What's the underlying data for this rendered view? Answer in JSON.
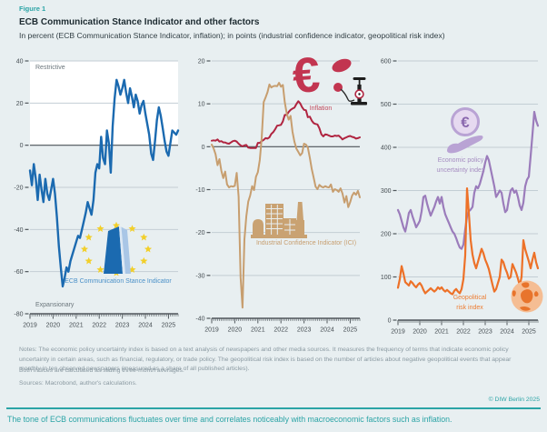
{
  "header": {
    "figure_label": "Figure 1",
    "title": "ECB Communication Stance Indicator and other factors",
    "subtitle": "In percent (ECB Communication Stance Indicator, inflation); in points (industrial confidence indicator, geopolitical risk index)"
  },
  "colors": {
    "background": "#e8eff1",
    "teal_accent": "#2ba4a6",
    "ecb_blue": "#1b6ab0",
    "inflation_red": "#b02440",
    "ici_tan": "#c79e6f",
    "epu_purple": "#9b7cbb",
    "gpr_orange": "#ed7128",
    "grid": "#c3ced4",
    "axis": "#50575c",
    "star_yellow": "#f2cf2a"
  },
  "icons": {
    "euro_symbol": "€"
  },
  "chart_data": [
    {
      "type": "line",
      "panel": "left",
      "unit": "percent",
      "ylim": [
        -80,
        40
      ],
      "yticks": [
        40,
        20,
        0,
        -20,
        -40,
        -60,
        -80
      ],
      "xticks": [
        "2019",
        "2020",
        "2021",
        "2022",
        "2023",
        "2024",
        "2025"
      ],
      "x_monthly_from": "2019-01",
      "x_monthly_to": "2025-06",
      "grid": true,
      "zone_labels": {
        "top": "Restrictive",
        "bottom": "Expansionary"
      },
      "bands": [
        {
          "from": 0,
          "to": 40,
          "color": "#ffffff"
        }
      ],
      "series": [
        {
          "name": "ECB Communication Stance Indicator",
          "color": "#1b6ab0",
          "width": 2.4,
          "values": [
            -12,
            -19,
            -9,
            -16,
            -26,
            -14,
            -21,
            -27,
            -16,
            -23,
            -26,
            -21,
            -16,
            -23,
            -34,
            -48,
            -58,
            -67,
            -63,
            -58,
            -60,
            -55,
            -52,
            -49,
            -46,
            -43,
            -44,
            -40,
            -36,
            -32,
            -27,
            -30,
            -33,
            -26,
            -13,
            -9,
            -11,
            4,
            -6,
            -9,
            7,
            1,
            -13,
            9,
            22,
            31,
            28,
            24,
            27,
            31,
            25,
            20,
            27,
            23,
            18,
            24,
            21,
            15,
            19,
            21,
            15,
            10,
            5,
            -4,
            -7,
            2,
            12,
            18,
            14,
            8,
            2,
            -3,
            -5,
            1,
            7,
            6,
            5,
            7
          ]
        }
      ]
    },
    {
      "type": "line",
      "panel": "middle",
      "unit": "percent / points",
      "ylim": [
        -40,
        20
      ],
      "yticks": [
        20,
        10,
        0,
        -10,
        -20,
        -30,
        -40
      ],
      "xticks": [
        "2019",
        "2020",
        "2021",
        "2022",
        "2023",
        "2024",
        "2025"
      ],
      "x_monthly_from": "2019-01",
      "x_monthly_to": "2025-06",
      "grid": true,
      "series": [
        {
          "name": "Inflation",
          "color": "#b02440",
          "width": 2,
          "values": [
            1.4,
            1.5,
            1.4,
            1.7,
            1.2,
            1.3,
            1.0,
            1.0,
            0.8,
            0.7,
            1.0,
            1.3,
            1.4,
            1.2,
            0.7,
            0.3,
            0.1,
            0.3,
            0.4,
            -0.2,
            -0.3,
            -0.3,
            -0.3,
            -0.3,
            0.9,
            0.9,
            1.3,
            1.6,
            2.0,
            1.9,
            2.2,
            3.0,
            3.4,
            4.1,
            4.9,
            5.0,
            5.1,
            5.9,
            7.4,
            7.4,
            8.1,
            8.6,
            8.9,
            9.1,
            9.9,
            10.6,
            10.1,
            9.2,
            8.6,
            8.5,
            6.9,
            7.0,
            6.1,
            5.5,
            5.3,
            5.2,
            4.3,
            2.9,
            2.4,
            2.9,
            2.8,
            2.6,
            2.4,
            2.4,
            2.6,
            2.5,
            2.6,
            2.2,
            1.7,
            2.0,
            2.2,
            2.4,
            2.5,
            2.3,
            2.2,
            1.9,
            2.0,
            2.2
          ]
        },
        {
          "name": "Industrial Confidence Indicator (ICI)",
          "color": "#c79e6f",
          "width": 2,
          "values": [
            0.5,
            -0.4,
            -1.7,
            -4.3,
            -2.9,
            -5.6,
            -7.3,
            -5.8,
            -8.8,
            -9.5,
            -9.2,
            -9.3,
            -9.1,
            -6.1,
            -11.6,
            -30.5,
            -37.5,
            -21.6,
            -16.2,
            -12.8,
            -11.4,
            -9.2,
            -10.1,
            -7.0,
            -5.9,
            -3.1,
            2.0,
            10.4,
            11.5,
            12.7,
            14.5,
            13.8,
            14.1,
            14.2,
            14.1,
            14.9,
            14.0,
            14.4,
            10.4,
            7.7,
            6.3,
            7.2,
            3.5,
            1.2,
            -0.4,
            -1.2,
            -2.0,
            -1.5,
            0.7,
            0.5,
            -0.2,
            -2.6,
            -5.2,
            -7.2,
            -9.3,
            -9.9,
            -8.9,
            -9.3,
            -9.5,
            -9.2,
            -9.4,
            -9.5,
            -8.8,
            -10.5,
            -9.9,
            -10.1,
            -10.5,
            -9.7,
            -10.9,
            -13.0,
            -11.5,
            -14.1,
            -12.9,
            -11.4,
            -10.7,
            -11.2,
            -10.3,
            -11.8
          ]
        }
      ]
    },
    {
      "type": "line",
      "panel": "right",
      "unit": "points",
      "ylim": [
        0,
        600
      ],
      "yticks": [
        600,
        500,
        400,
        300,
        200,
        100,
        0
      ],
      "xticks": [
        "2019",
        "2020",
        "2021",
        "2022",
        "2023",
        "2024",
        "2025"
      ],
      "x_monthly_from": "2019-01",
      "x_monthly_to": "2025-06",
      "grid": true,
      "series": [
        {
          "name": "Economic policy uncertainty index",
          "label_lines": [
            "Economic policy",
            "uncertainty index"
          ],
          "color": "#9b7cbb",
          "width": 2.2,
          "values": [
            255,
            245,
            230,
            215,
            205,
            225,
            248,
            255,
            240,
            228,
            215,
            222,
            230,
            252,
            285,
            288,
            270,
            255,
            242,
            252,
            262,
            275,
            285,
            270,
            285,
            262,
            245,
            235,
            225,
            215,
            205,
            200,
            190,
            178,
            168,
            165,
            175,
            210,
            240,
            252,
            256,
            262,
            295,
            310,
            305,
            315,
            330,
            345,
            365,
            380,
            370,
            350,
            330,
            310,
            285,
            292,
            300,
            295,
            270,
            250,
            255,
            280,
            300,
            305,
            295,
            300,
            285,
            265,
            255,
            272,
            310,
            325,
            332,
            380,
            430,
            482,
            462,
            450
          ]
        },
        {
          "name": "Geopolitical risk index",
          "label_lines": [
            "Geopolitical",
            "risk index"
          ],
          "color": "#ed7128",
          "width": 2.2,
          "values": [
            75,
            95,
            125,
            108,
            88,
            84,
            80,
            90,
            86,
            80,
            76,
            82,
            86,
            80,
            70,
            62,
            66,
            70,
            74,
            70,
            66,
            70,
            76,
            72,
            76,
            70,
            66,
            70,
            66,
            62,
            60,
            68,
            72,
            66,
            62,
            72,
            95,
            150,
            305,
            248,
            185,
            152,
            132,
            120,
            135,
            150,
            165,
            155,
            140,
            130,
            118,
            100,
            82,
            66,
            72,
            86,
            100,
            140,
            134,
            120,
            110,
            96,
            100,
            130,
            120,
            110,
            96,
            80,
            100,
            185,
            164,
            150,
            136,
            120,
            140,
            156,
            134,
            120
          ]
        }
      ]
    }
  ],
  "notes": {
    "line1": "Notes: The economic policy uncertainty index is based on a text analysis of newspapers and other media sources. It measures the frequency of terms that indicate economic policy uncertainty in certain areas, such as financial, regulatory, or trade policy. The geopolitical risk index is based on the number of articles about negative geopolitical events that appear monthly in ten observed newspapers (measured as a share of all published articles).",
    "line2": "Both indices are calculated as sliding three-month averages.",
    "sources": "Sources: Macrobond, author's calculations."
  },
  "footer": {
    "copyright": "© DIW Berlin 2025",
    "caption": "The tone of ECB communications fluctuates over time and correlates noticeably with macroeconomic factors such as inflation."
  }
}
